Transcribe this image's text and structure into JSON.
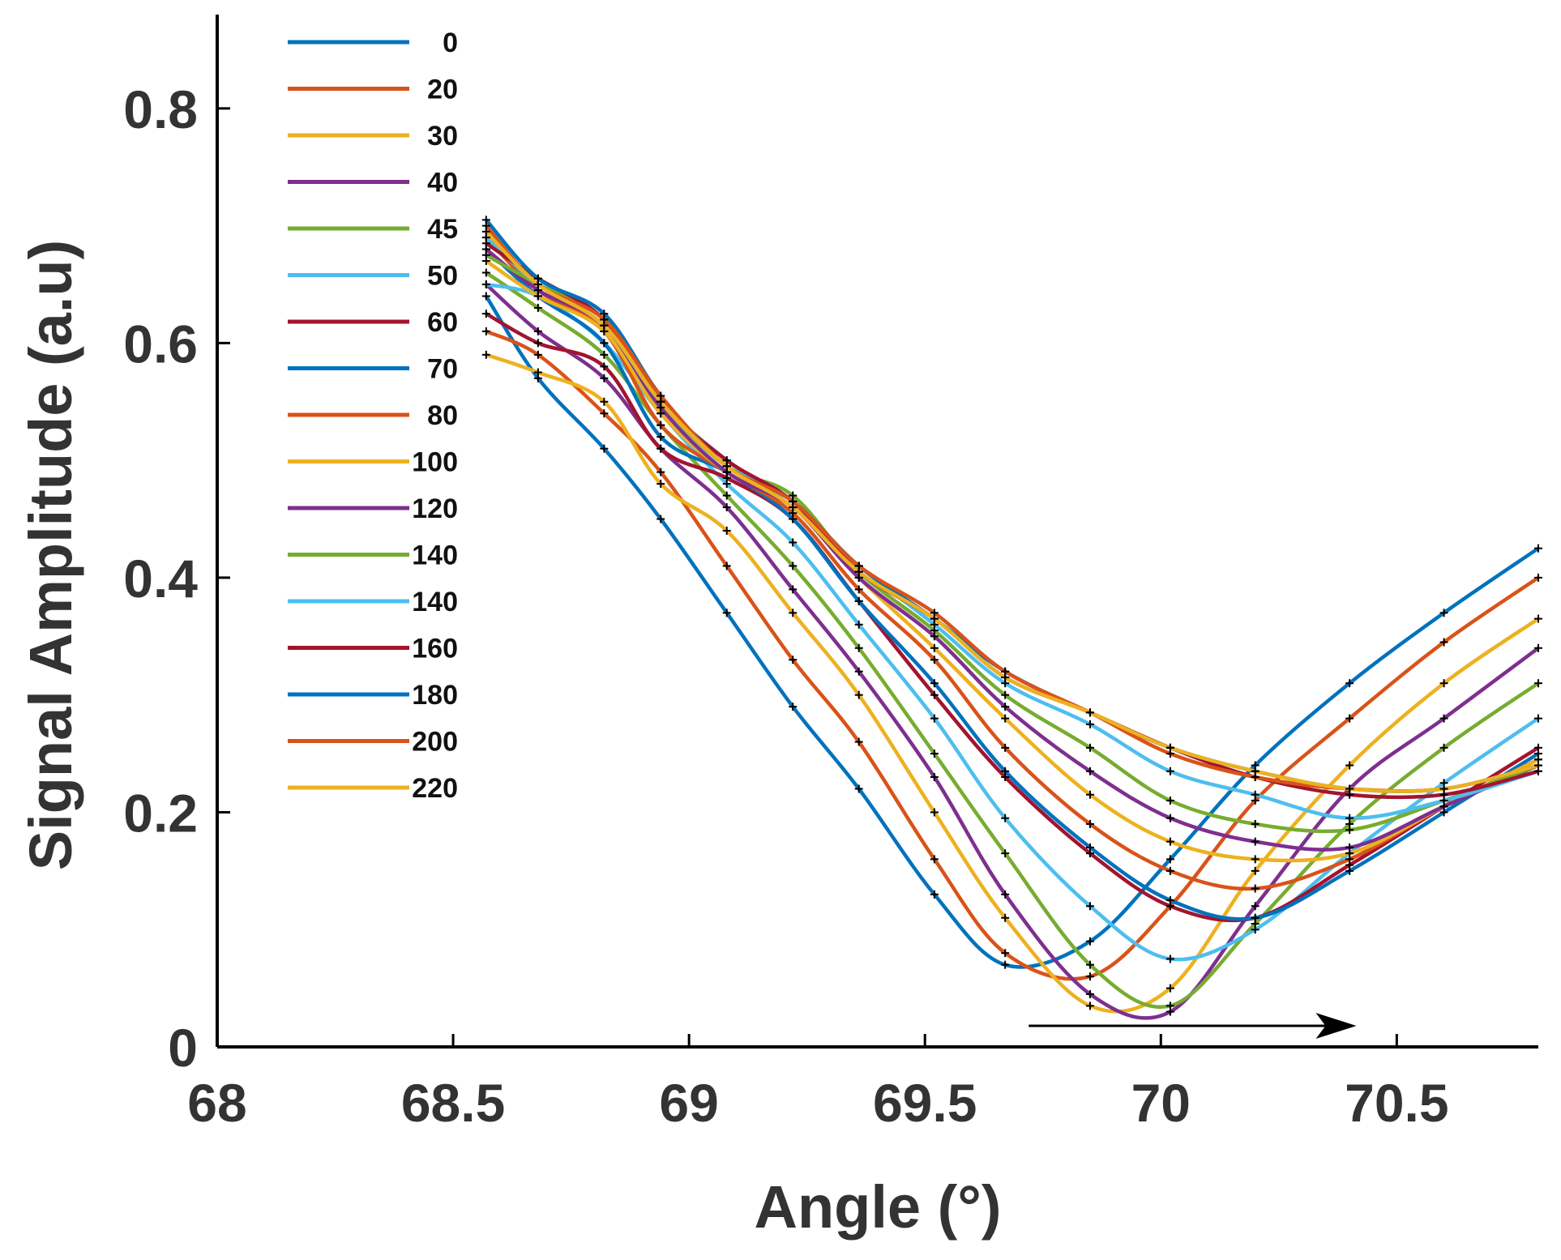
{
  "chart_data": {
    "type": "line",
    "title": "",
    "xlabel": "Angle (°)",
    "ylabel": "Signal Amplitude (a.u)",
    "xlim": [
      68,
      70.8
    ],
    "ylim": [
      0,
      0.88
    ],
    "x_ticks": [
      "68",
      "68.5",
      "69",
      "69.5",
      "70",
      "70.5"
    ],
    "y_ticks": [
      "0",
      "0.2",
      "0.4",
      "0.6",
      "0.8"
    ],
    "grid": false,
    "legend_position": "top-left",
    "legend_entries": [
      "0",
      "20",
      "30",
      "40",
      "45",
      "50",
      "60",
      "70",
      "80",
      "100",
      "120",
      "140",
      "140",
      "160",
      "180",
      "200",
      "220"
    ],
    "annotation": "arrow pointing right along bottom from ~69.7° to ~70.4° indicating resonance shift",
    "marker": "+",
    "series": [
      {
        "name": "0",
        "color": "#0072BD",
        "x": [
          68.57,
          68.68,
          68.82,
          68.94,
          69.08,
          69.22,
          69.36,
          69.52,
          69.67,
          69.85,
          70.02,
          70.2,
          70.4,
          70.6,
          70.8
        ],
        "y": [
          0.64,
          0.57,
          0.51,
          0.45,
          0.37,
          0.29,
          0.22,
          0.13,
          0.07,
          0.09,
          0.16,
          0.24,
          0.31,
          0.37,
          0.425
        ]
      },
      {
        "name": "20",
        "color": "#D95319",
        "x": [
          68.57,
          68.68,
          68.82,
          68.94,
          69.08,
          69.22,
          69.36,
          69.52,
          69.67,
          69.85,
          70.02,
          70.2,
          70.4,
          70.6,
          70.8
        ],
        "y": [
          0.61,
          0.59,
          0.54,
          0.49,
          0.41,
          0.33,
          0.26,
          0.16,
          0.08,
          0.06,
          0.12,
          0.21,
          0.28,
          0.345,
          0.4
        ]
      },
      {
        "name": "30",
        "color": "#EDB120",
        "x": [
          68.57,
          68.68,
          68.82,
          68.94,
          69.08,
          69.22,
          69.36,
          69.52,
          69.67,
          69.85,
          70.02,
          70.2,
          70.4,
          70.6,
          70.8
        ],
        "y": [
          0.59,
          0.575,
          0.55,
          0.48,
          0.44,
          0.37,
          0.3,
          0.2,
          0.11,
          0.035,
          0.05,
          0.15,
          0.24,
          0.31,
          0.365
        ]
      },
      {
        "name": "40",
        "color": "#7E2F8E",
        "x": [
          68.57,
          68.68,
          68.82,
          68.94,
          69.08,
          69.22,
          69.36,
          69.52,
          69.67,
          69.85,
          70.02,
          70.2,
          70.4,
          70.6,
          70.8
        ],
        "y": [
          0.65,
          0.61,
          0.57,
          0.51,
          0.46,
          0.39,
          0.32,
          0.23,
          0.13,
          0.045,
          0.03,
          0.12,
          0.22,
          0.28,
          0.34
        ]
      },
      {
        "name": "45",
        "color": "#77AC30",
        "x": [
          68.57,
          68.68,
          68.82,
          68.94,
          69.08,
          69.22,
          69.36,
          69.52,
          69.67,
          69.85,
          70.02,
          70.2,
          70.4,
          70.6,
          70.8
        ],
        "y": [
          0.66,
          0.63,
          0.59,
          0.53,
          0.47,
          0.41,
          0.34,
          0.25,
          0.165,
          0.07,
          0.035,
          0.105,
          0.19,
          0.255,
          0.31
        ]
      },
      {
        "name": "50",
        "color": "#4DBEEE",
        "x": [
          68.57,
          68.68,
          68.82,
          68.94,
          69.08,
          69.22,
          69.36,
          69.52,
          69.67,
          69.85,
          70.02,
          70.2,
          70.4,
          70.6,
          70.8
        ],
        "y": [
          0.65,
          0.64,
          0.6,
          0.54,
          0.48,
          0.43,
          0.36,
          0.28,
          0.195,
          0.12,
          0.075,
          0.1,
          0.165,
          0.225,
          0.28
        ]
      },
      {
        "name": "60",
        "color": "#A2142F",
        "x": [
          68.57,
          68.68,
          68.82,
          68.94,
          69.08,
          69.22,
          69.36,
          69.52,
          69.67,
          69.85,
          70.02,
          70.2,
          70.4,
          70.6,
          70.8
        ],
        "y": [
          0.625,
          0.6,
          0.58,
          0.51,
          0.485,
          0.45,
          0.38,
          0.3,
          0.23,
          0.165,
          0.12,
          0.11,
          0.155,
          0.205,
          0.255
        ]
      },
      {
        "name": "70",
        "color": "#0072BD",
        "x": [
          68.57,
          68.68,
          68.82,
          68.94,
          69.08,
          69.22,
          69.36,
          69.52,
          69.67,
          69.85,
          70.02,
          70.2,
          70.4,
          70.6,
          70.8
        ],
        "y": [
          0.68,
          0.64,
          0.6,
          0.52,
          0.49,
          0.45,
          0.38,
          0.31,
          0.235,
          0.17,
          0.125,
          0.11,
          0.15,
          0.2,
          0.25
        ]
      },
      {
        "name": "80",
        "color": "#D95319",
        "x": [
          68.57,
          68.68,
          68.82,
          68.94,
          69.08,
          69.22,
          69.36,
          69.52,
          69.67,
          69.85,
          70.02,
          70.2,
          70.4,
          70.6,
          70.8
        ],
        "y": [
          0.69,
          0.645,
          0.61,
          0.53,
          0.49,
          0.455,
          0.39,
          0.33,
          0.255,
          0.19,
          0.15,
          0.135,
          0.16,
          0.205,
          0.245
        ]
      },
      {
        "name": "100",
        "color": "#EDB120",
        "x": [
          68.57,
          68.68,
          68.82,
          68.94,
          69.08,
          69.22,
          69.36,
          69.52,
          69.67,
          69.85,
          70.02,
          70.2,
          70.4,
          70.6,
          70.8
        ],
        "y": [
          0.67,
          0.64,
          0.61,
          0.54,
          0.49,
          0.46,
          0.4,
          0.34,
          0.28,
          0.215,
          0.175,
          0.16,
          0.165,
          0.205,
          0.245
        ]
      },
      {
        "name": "120",
        "color": "#7E2F8E",
        "x": [
          68.57,
          68.68,
          68.82,
          68.94,
          69.08,
          69.22,
          69.36,
          69.52,
          69.67,
          69.85,
          70.02,
          70.2,
          70.4,
          70.6,
          70.8
        ],
        "y": [
          0.68,
          0.645,
          0.615,
          0.545,
          0.49,
          0.46,
          0.4,
          0.35,
          0.29,
          0.235,
          0.195,
          0.175,
          0.17,
          0.205,
          0.24
        ]
      },
      {
        "name": "140",
        "color": "#77AC30",
        "x": [
          68.57,
          68.68,
          68.82,
          68.94,
          69.08,
          69.22,
          69.36,
          69.52,
          69.67,
          69.85,
          70.02,
          70.2,
          70.4,
          70.6,
          70.8
        ],
        "y": [
          0.675,
          0.65,
          0.62,
          0.55,
          0.495,
          0.47,
          0.405,
          0.355,
          0.3,
          0.255,
          0.21,
          0.19,
          0.185,
          0.21,
          0.24
        ]
      },
      {
        "name": "140",
        "color": "#4DBEEE",
        "x": [
          68.57,
          68.68,
          68.82,
          68.94,
          69.08,
          69.22,
          69.36,
          69.52,
          69.67,
          69.85,
          70.02,
          70.2,
          70.4,
          70.6,
          70.8
        ],
        "y": [
          0.69,
          0.65,
          0.615,
          0.55,
          0.5,
          0.46,
          0.41,
          0.36,
          0.31,
          0.275,
          0.235,
          0.215,
          0.195,
          0.21,
          0.235
        ]
      },
      {
        "name": "160",
        "color": "#A2142F",
        "x": [
          68.57,
          68.68,
          68.82,
          68.94,
          69.08,
          69.22,
          69.36,
          69.52,
          69.67,
          69.85,
          70.02,
          70.2,
          70.4,
          70.6,
          70.8
        ],
        "y": [
          0.685,
          0.655,
          0.62,
          0.55,
          0.5,
          0.465,
          0.405,
          0.365,
          0.315,
          0.285,
          0.255,
          0.23,
          0.215,
          0.215,
          0.235
        ]
      },
      {
        "name": "180",
        "color": "#0072BD",
        "x": [
          68.57,
          68.68,
          68.82,
          68.94,
          69.08,
          69.22,
          69.36,
          69.52,
          69.67,
          69.85,
          70.02,
          70.2,
          70.4,
          70.6,
          70.8
        ],
        "y": [
          0.705,
          0.655,
          0.625,
          0.555,
          0.495,
          0.465,
          0.41,
          0.365,
          0.32,
          0.285,
          0.255,
          0.235,
          0.22,
          0.22,
          0.24
        ]
      },
      {
        "name": "200",
        "color": "#D95319",
        "x": [
          68.57,
          68.68,
          68.82,
          68.94,
          69.08,
          69.22,
          69.36,
          69.52,
          69.67,
          69.85,
          70.02,
          70.2,
          70.4,
          70.6,
          70.8
        ],
        "y": [
          0.7,
          0.65,
          0.62,
          0.555,
          0.495,
          0.465,
          0.41,
          0.37,
          0.32,
          0.285,
          0.25,
          0.23,
          0.22,
          0.22,
          0.24
        ]
      },
      {
        "name": "220",
        "color": "#EDB120",
        "x": [
          68.57,
          68.68,
          68.82,
          68.94,
          69.08,
          69.22,
          69.36,
          69.52,
          69.67,
          69.85,
          70.02,
          70.2,
          70.4,
          70.6,
          70.8
        ],
        "y": [
          0.695,
          0.65,
          0.615,
          0.55,
          0.495,
          0.46,
          0.405,
          0.365,
          0.315,
          0.285,
          0.255,
          0.235,
          0.22,
          0.22,
          0.24
        ]
      }
    ]
  }
}
